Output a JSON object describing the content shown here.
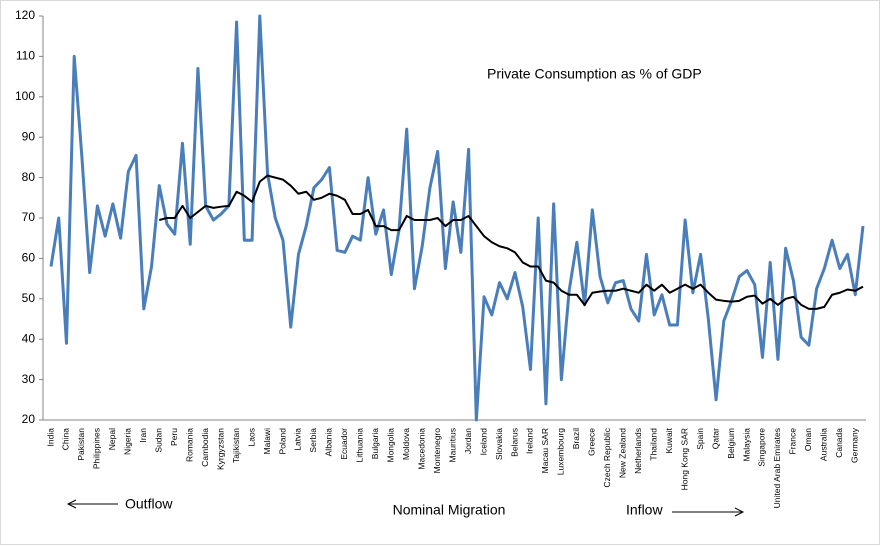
{
  "chart_data": {
    "type": "line",
    "title": "Private Consumption as % of GDP",
    "xlabel": "Nominal Migration",
    "annotations": [
      "Outflow",
      "Inflow"
    ],
    "categories": [
      "India",
      null,
      "China",
      null,
      "Pakistan",
      null,
      "Philippines",
      null,
      "Nepal",
      null,
      "Nigeria",
      null,
      "Iran",
      null,
      "Sudan",
      null,
      "Peru",
      null,
      "Romania",
      null,
      "Cambodia",
      null,
      "Kyrgyzstan",
      null,
      "Tajikistan",
      null,
      "Laos",
      null,
      "Malawi",
      null,
      "Poland",
      null,
      "Latvia",
      null,
      "Serbia",
      null,
      "Albania",
      null,
      "Ecuador",
      null,
      "Lithuania",
      null,
      "Bulgaria",
      null,
      "Mongolia",
      null,
      "Moldova",
      null,
      "Macedonia",
      null,
      "Montenegro",
      null,
      "Mauritius",
      null,
      "Jordan",
      null,
      "Iceland",
      null,
      "Slovakia",
      null,
      "Belarus",
      null,
      "Ireland",
      null,
      "Macau SAR",
      null,
      "Luxembourg",
      null,
      "Brazil",
      null,
      "Greece",
      null,
      "Czech Republic",
      null,
      "New Zealand",
      null,
      "Netherlands",
      null,
      "Thailand",
      null,
      "Kuwait",
      null,
      "Hong Kong SAR",
      null,
      "Spain",
      null,
      "Qatar",
      null,
      "Belgium",
      null,
      "Malaysia",
      null,
      "Singapore",
      null,
      "United Arab Emirates",
      null,
      "France",
      null,
      "Oman",
      null,
      "Australia",
      null,
      "Canada",
      null,
      "Germany",
      null
    ],
    "series": [
      {
        "color": "#4a7ebb",
        "values": [
          58,
          70,
          39,
          110,
          85,
          56.5,
          73,
          65.5,
          73.5,
          65,
          81.5,
          85.5,
          47.5,
          58,
          78,
          68.5,
          66,
          88.5,
          63.5,
          107,
          73,
          69.5,
          71,
          73,
          118.5,
          64.5,
          64.5,
          120,
          81,
          70,
          64.5,
          43,
          61,
          68,
          77.5,
          79.5,
          82.5,
          62,
          61.5,
          65.5,
          64.5,
          80,
          66,
          72,
          56,
          67,
          92,
          52.5,
          63,
          77.5,
          86.5,
          57.5,
          74,
          61.5,
          87,
          20,
          50.5,
          46,
          54,
          50,
          56.5,
          48,
          32.5,
          70,
          24,
          73.5,
          30,
          52,
          64,
          48.5,
          72,
          55.5,
          49,
          54,
          54.5,
          47.5,
          44.5,
          61,
          46,
          51,
          43.5,
          43.5,
          69.5,
          51.5,
          61,
          45,
          25,
          44.5,
          49.5,
          55.5,
          57,
          53.5,
          35.5,
          59,
          35,
          62.5,
          54.5,
          40.5,
          38.5,
          52.5,
          57.5,
          64.5,
          57.5,
          61,
          51,
          68
        ]
      },
      {
        "color": "#000000",
        "values": [
          null,
          null,
          null,
          null,
          null,
          null,
          null,
          null,
          null,
          null,
          null,
          null,
          null,
          null,
          69.5,
          70,
          70,
          73,
          70,
          71.5,
          73,
          72.5,
          72.8,
          73,
          76.5,
          75.5,
          74,
          79,
          80.5,
          80,
          79.5,
          78,
          76,
          76.5,
          74.5,
          75,
          76,
          75.5,
          74.5,
          71,
          71,
          72,
          68,
          68,
          67,
          67,
          70.5,
          69.5,
          69.5,
          69.5,
          70,
          68,
          69.5,
          69.5,
          70.5,
          68,
          65.5,
          64,
          63,
          62.5,
          61.5,
          59,
          58,
          58,
          54.5,
          54,
          52,
          51,
          51,
          48.5,
          51.5,
          51.8,
          52,
          52,
          52.5,
          52,
          51.5,
          53.5,
          52,
          53.5,
          51.5,
          52.5,
          53.5,
          52.5,
          53.5,
          51.5,
          49.8,
          49.5,
          49.3,
          49.5,
          50.5,
          50.8,
          48.8,
          50,
          48.5,
          50,
          50.5,
          48.5,
          47.5,
          47.5,
          48,
          51,
          51.5,
          52.3,
          52,
          53
        ]
      }
    ],
    "ylim": [
      20,
      120
    ],
    "yticks": [
      20,
      30,
      40,
      50,
      60,
      70,
      80,
      90,
      100,
      110,
      120
    ],
    "grid": false
  }
}
